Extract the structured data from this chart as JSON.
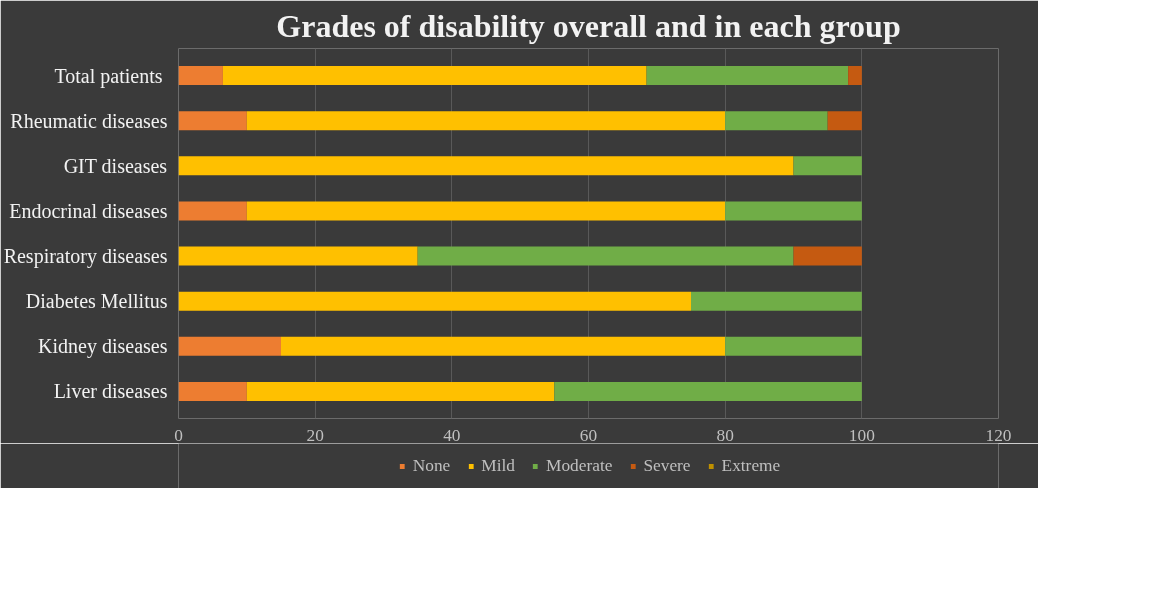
{
  "chart_data": {
    "type": "bar",
    "orientation": "horizontal",
    "stacked": true,
    "title": "Grades of disability overall and in each group",
    "categories": [
      "Total  patients",
      "Rheumatic diseases",
      "GIT diseases",
      "Endocrinal diseases",
      "Respiratory diseases",
      "Diabetes Mellitus",
      "Kidney diseases",
      "Liver diseases"
    ],
    "series": [
      {
        "name": "None",
        "color": "#ed7d31",
        "values": [
          6.5,
          10,
          0,
          10,
          0,
          0,
          15,
          10
        ]
      },
      {
        "name": "Mild",
        "color": "#ffc000",
        "values": [
          62,
          70,
          90,
          70,
          35,
          75,
          65,
          45
        ]
      },
      {
        "name": "Moderate",
        "color": "#70ad47",
        "values": [
          29.5,
          15,
          10,
          20,
          55,
          25,
          20,
          45
        ]
      },
      {
        "name": "Severe",
        "color": "#c55a11",
        "values": [
          2,
          5,
          0,
          0,
          10,
          0,
          0,
          0
        ]
      },
      {
        "name": "Extreme",
        "color": "#bf9000",
        "values": [
          0,
          0,
          0,
          0,
          0,
          0,
          0,
          0
        ]
      }
    ],
    "xlim": [
      0,
      120
    ],
    "xticks": [
      0,
      20,
      40,
      60,
      80,
      100,
      120
    ],
    "grid": "x",
    "legend": "bottom"
  }
}
